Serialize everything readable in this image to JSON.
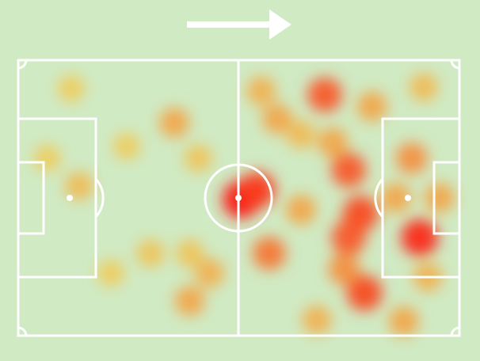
{
  "chart_data": {
    "type": "heatmap",
    "xlim": [
      0,
      100
    ],
    "ylim": [
      0,
      100
    ],
    "x": [
      50.6,
      54.2,
      69.5,
      74.9,
      77.6,
      74.9,
      78.5,
      91,
      89.2,
      56.9,
      35.4,
      13.8,
      38.9,
      43.4,
      71.3,
      80.2,
      91.9,
      58.7,
      55.1,
      64.1,
      67.7,
      87.4,
      95.5,
      12,
      30,
      38.9,
      21,
      40.8,
      64.1,
      92.8,
      73.9,
      85.6,
      6.6,
      24.6
    ],
    "y": [
      50.6,
      47.1,
      12.6,
      39.9,
      55.7,
      64.4,
      84.5,
      64.4,
      35.6,
      70.1,
      22.7,
      45.7,
      87.4,
      77.3,
      29.9,
      16.8,
      9.8,
      21.3,
      11.2,
      54.3,
      94.3,
      94.8,
      50,
      10.3,
      70.1,
      70.1,
      77.3,
      35.6,
      27,
      78.7,
      75.9,
      50,
      35.6,
      31.3
    ],
    "values": [
      1.0,
      0.9,
      0.8,
      0.8,
      0.85,
      0.8,
      0.85,
      0.95,
      0.6,
      0.7,
      0.5,
      0.4,
      0.5,
      0.45,
      0.5,
      0.5,
      0.4,
      0.5,
      0.45,
      0.5,
      0.45,
      0.5,
      0.5,
      0.3,
      0.35,
      0.35,
      0.3,
      0.35,
      0.4,
      0.45,
      0.6,
      0.5,
      0.3,
      0.3
    ]
  }
}
